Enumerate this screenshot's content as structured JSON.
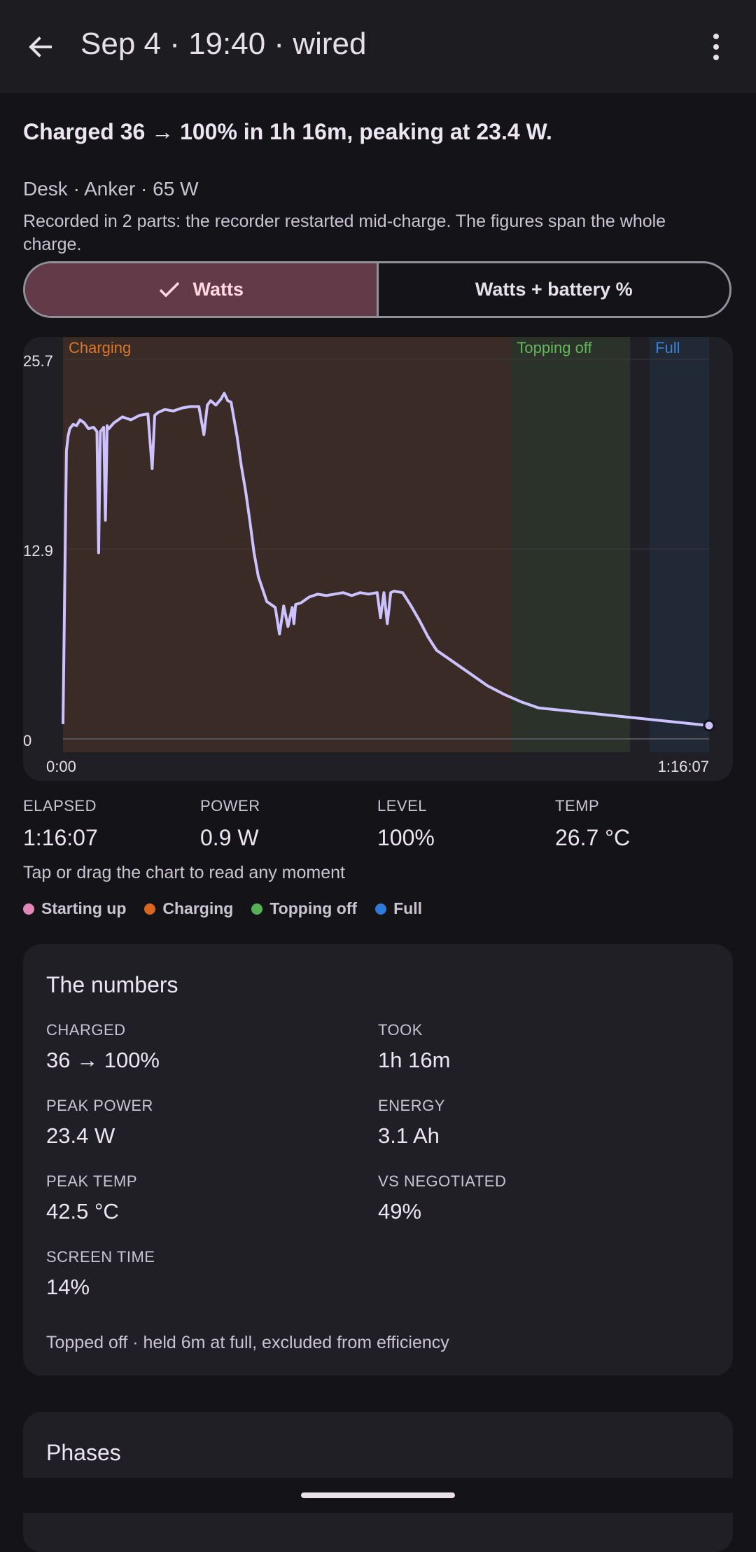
{
  "header": {
    "title": "Sep 4 · 19:40 · wired"
  },
  "summary": "Charged 36 → 100% in 1h 16m, peaking at 23.4 W.",
  "source": "Desk · Anker · 65 W",
  "note": "Recorded in 2 parts: the recorder restarted mid-charge. The figures span the whole charge.",
  "toggle": {
    "watts": "Watts",
    "watts_battery": "Watts + battery %"
  },
  "chart_data": {
    "type": "line",
    "ylim": [
      0,
      25.7
    ],
    "y_ticks": [
      "25.7",
      "12.9",
      "0"
    ],
    "x_ticks": [
      "0:00",
      "1:16:07"
    ],
    "x_range_minutes": [
      0,
      76.1
    ],
    "phase_bands": [
      {
        "name": "Charging",
        "start": 0,
        "end": 52.8,
        "color": "#3a2b26",
        "label_color": "#d9772b"
      },
      {
        "name": "Topping off",
        "start": 52.8,
        "end": 66.8,
        "color": "#2b3229",
        "label_color": "#62b85a"
      },
      {
        "name": "Full",
        "start": 69.1,
        "end": 76.1,
        "color": "#202935",
        "label_color": "#3a82d6"
      }
    ],
    "series": [
      {
        "color": "#ccc2ff",
        "x": [
          0,
          0.2,
          0.4,
          0.6,
          0.8,
          1.2,
          1.6,
          2,
          2.5,
          3,
          3.6,
          4,
          4.2,
          4.4,
          4.8,
          5,
          5.2,
          5.4,
          6,
          7,
          8,
          9,
          10,
          10.5,
          10.8,
          11.2,
          12,
          13,
          14,
          15,
          16,
          16.6,
          17,
          17.4,
          18,
          18.6,
          19,
          19.4,
          19.8,
          20.5,
          21,
          21.5,
          22,
          22.5,
          23,
          24,
          25,
          25.5,
          26,
          26.5,
          27,
          27.2,
          27.4,
          28,
          29,
          30,
          31,
          32,
          33,
          34,
          35,
          36,
          37,
          37.4,
          37.8,
          38.2,
          38.6,
          39,
          40,
          41,
          42,
          43,
          44,
          46,
          48,
          50,
          52,
          54,
          56,
          76.1
        ],
        "values": [
          1.0,
          10.0,
          19.5,
          20.5,
          21.0,
          21.3,
          21.2,
          21.6,
          21.4,
          21.0,
          21.1,
          20.8,
          12.6,
          20.8,
          21.1,
          14.8,
          21.2,
          21.0,
          21.4,
          21.8,
          21.6,
          21.9,
          22.0,
          18.3,
          21.9,
          22.1,
          22.3,
          22.2,
          22.4,
          22.5,
          22.5,
          20.6,
          22.6,
          22.9,
          22.6,
          23.0,
          23.4,
          22.9,
          22.8,
          20.5,
          18.5,
          16.8,
          14.8,
          12.6,
          11.0,
          9.3,
          8.9,
          7.1,
          9.0,
          7.6,
          8.9,
          7.8,
          9.1,
          9.2,
          9.6,
          9.8,
          9.7,
          9.8,
          9.9,
          9.7,
          9.9,
          9.8,
          9.9,
          8.2,
          9.9,
          7.8,
          9.9,
          10.0,
          9.9,
          9.0,
          8.0,
          6.9,
          6.0,
          5.2,
          4.4,
          3.6,
          3.0,
          2.5,
          2.1,
          0.9
        ]
      }
    ]
  },
  "stats": [
    {
      "label": "ELAPSED",
      "value": "1:16:07"
    },
    {
      "label": "POWER",
      "value": "0.9 W"
    },
    {
      "label": "LEVEL",
      "value": "100%"
    },
    {
      "label": "TEMP",
      "value": "26.7 °C"
    }
  ],
  "hint": "Tap or drag the chart to read any moment",
  "legend": [
    {
      "label": "Starting up",
      "color": "#e388b6"
    },
    {
      "label": "Charging",
      "color": "#d9661f"
    },
    {
      "label": "Topping off",
      "color": "#56b054"
    },
    {
      "label": "Full",
      "color": "#2f79d8"
    }
  ],
  "numbers": {
    "title": "The numbers",
    "cells": [
      {
        "label": "CHARGED",
        "value": "36 → 100%"
      },
      {
        "label": "TOOK",
        "value": "1h 16m"
      },
      {
        "label": "PEAK POWER",
        "value": "23.4 W"
      },
      {
        "label": "ENERGY",
        "value": "3.1 Ah"
      },
      {
        "label": "PEAK TEMP",
        "value": "42.5 °C"
      },
      {
        "label": "VS NEGOTIATED",
        "value": "49%"
      },
      {
        "label": "SCREEN TIME",
        "value": "14%"
      }
    ],
    "footer": "Topped off · held 6m at full, excluded from efficiency"
  },
  "phases": {
    "title": "Phases"
  }
}
